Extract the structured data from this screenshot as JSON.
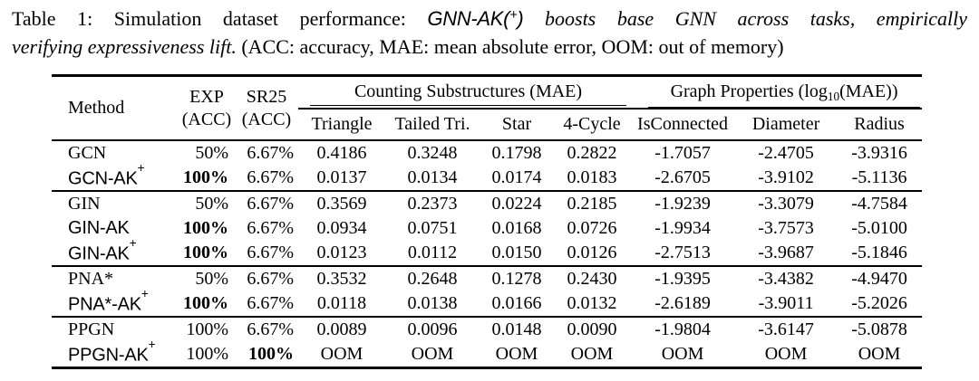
{
  "caption": {
    "prefix": "Table 1: Simulation dataset performance: ",
    "model_text": "GNN-AK(",
    "model_sup": "+",
    "model_close": ")",
    "emph_line1": " boosts base GNN across tasks, empirically",
    "emph_line2": "verifying expressiveness lift.",
    "normal_line2": " (ACC: accuracy, MAE: mean absolute error, OOM: out of memory)"
  },
  "table": {
    "header": {
      "method": "Method",
      "exp_line1": "EXP",
      "exp_line2": "(ACC)",
      "sr25_line1": "SR25",
      "sr25_line2": "(ACC)",
      "group1": "Counting Substructures (MAE)",
      "group2_pre": "Graph Properties (log",
      "group2_sub": "10",
      "group2_post": "(MAE))",
      "subcols": [
        "Triangle",
        "Tailed Tri.",
        "Star",
        "4-Cycle",
        "IsConnected",
        "Diameter",
        "Radius"
      ]
    },
    "groups": [
      {
        "rows": [
          {
            "method": "GCN",
            "sup": "",
            "sans": false,
            "exp": "50%",
            "expBold": false,
            "sr25": "6.67%",
            "sr25Bold": false,
            "vals": [
              "0.4186",
              "0.3248",
              "0.1798",
              "0.2822",
              "-1.7057",
              "-2.4705",
              "-3.9316"
            ]
          },
          {
            "method": "GCN-AK",
            "sup": "+",
            "sans": true,
            "exp": "100%",
            "expBold": true,
            "sr25": "6.67%",
            "sr25Bold": false,
            "vals": [
              "0.0137",
              "0.0134",
              "0.0174",
              "0.0183",
              "-2.6705",
              "-3.9102",
              "-5.1136"
            ]
          }
        ]
      },
      {
        "rows": [
          {
            "method": "GIN",
            "sup": "",
            "sans": false,
            "exp": "50%",
            "expBold": false,
            "sr25": "6.67%",
            "sr25Bold": false,
            "vals": [
              "0.3569",
              "0.2373",
              "0.0224",
              "0.2185",
              "-1.9239",
              "-3.3079",
              "-4.7584"
            ]
          },
          {
            "method": "GIN-AK",
            "sup": "",
            "sans": true,
            "exp": "100%",
            "expBold": true,
            "sr25": "6.67%",
            "sr25Bold": false,
            "vals": [
              "0.0934",
              "0.0751",
              "0.0168",
              "0.0726",
              "-1.9934",
              "-3.7573",
              "-5.0100"
            ]
          },
          {
            "method": "GIN-AK",
            "sup": "+",
            "sans": true,
            "exp": "100%",
            "expBold": true,
            "sr25": "6.67%",
            "sr25Bold": false,
            "vals": [
              "0.0123",
              "0.0112",
              "0.0150",
              "0.0126",
              "-2.7513",
              "-3.9687",
              "-5.1846"
            ]
          }
        ]
      },
      {
        "rows": [
          {
            "method": "PNA*",
            "sup": "",
            "sans": false,
            "exp": "50%",
            "expBold": false,
            "sr25": "6.67%",
            "sr25Bold": false,
            "vals": [
              "0.3532",
              "0.2648",
              "0.1278",
              "0.2430",
              "-1.9395",
              "-3.4382",
              "-4.9470"
            ]
          },
          {
            "method": "PNA*-AK",
            "sup": "+",
            "sans": true,
            "exp": "100%",
            "expBold": true,
            "sr25": "6.67%",
            "sr25Bold": false,
            "vals": [
              "0.0118",
              "0.0138",
              "0.0166",
              "0.0132",
              "-2.6189",
              "-3.9011",
              "-5.2026"
            ]
          }
        ]
      },
      {
        "rows": [
          {
            "method": "PPGN",
            "sup": "",
            "sans": false,
            "exp": "100%",
            "expBold": false,
            "sr25": "6.67%",
            "sr25Bold": false,
            "vals": [
              "0.0089",
              "0.0096",
              "0.0148",
              "0.0090",
              "-1.9804",
              "-3.6147",
              "-5.0878"
            ]
          },
          {
            "method": "PPGN-AK",
            "sup": "+",
            "sans": true,
            "exp": "100%",
            "expBold": false,
            "sr25": "100%",
            "sr25Bold": true,
            "vals": [
              "OOM",
              "OOM",
              "OOM",
              "OOM",
              "OOM",
              "OOM",
              "OOM"
            ]
          }
        ]
      }
    ]
  },
  "colors": {
    "text": "#000000",
    "background": "#ffffff",
    "rule": "#000000"
  }
}
